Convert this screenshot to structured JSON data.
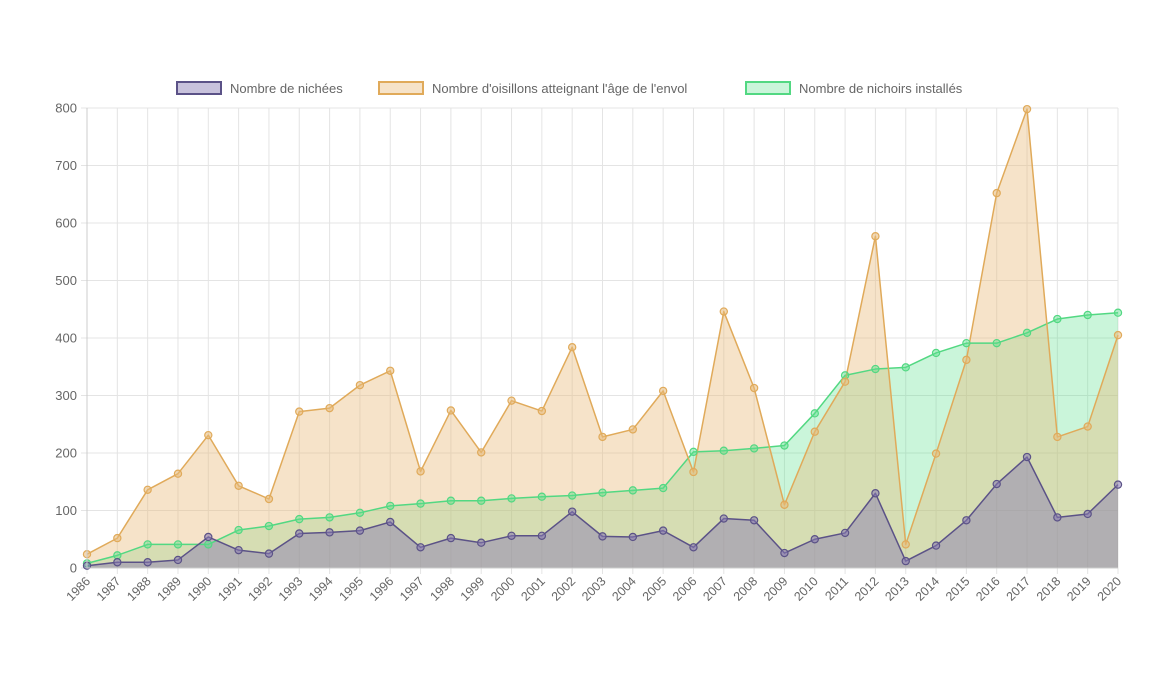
{
  "colors": {
    "nichees_stroke": "#5b5287",
    "nichees_fill": "rgba(134,120,178,0.45)",
    "nichees_point": "rgba(134,120,178,0.55)",
    "oisillons_stroke": "#e0aa5a",
    "oisillons_fill": "rgba(232,185,120,0.40)",
    "oisillons_point": "rgba(232,185,120,0.55)",
    "nichoirs_stroke": "#52d882",
    "nichoirs_fill": "rgba(90,225,140,0.32)",
    "nichoirs_point": "rgba(90,225,140,0.45)",
    "grid": "#e4e4e4",
    "tick_text": "#666666"
  },
  "chart_data": {
    "type": "area",
    "title": "",
    "xlabel": "",
    "ylabel": "",
    "ylim": [
      0,
      800
    ],
    "y_ticks": [
      0,
      100,
      200,
      300,
      400,
      500,
      600,
      700,
      800
    ],
    "grid": true,
    "legend_position": "top",
    "categories": [
      "1986",
      "1987",
      "1988",
      "1989",
      "1990",
      "1991",
      "1992",
      "1993",
      "1994",
      "1995",
      "1996",
      "1997",
      "1998",
      "1999",
      "2000",
      "2001",
      "2002",
      "2003",
      "2004",
      "2005",
      "2006",
      "2007",
      "2008",
      "2009",
      "2010",
      "2011",
      "2012",
      "2013",
      "2014",
      "2015",
      "2016",
      "2017",
      "2018",
      "2019",
      "2020"
    ],
    "series": [
      {
        "name": "Nombre de nichées",
        "key": "nichees",
        "values": [
          4,
          10,
          10,
          14,
          54,
          31,
          25,
          60,
          62,
          65,
          80,
          36,
          52,
          44,
          56,
          56,
          98,
          55,
          54,
          65,
          36,
          86,
          83,
          26,
          50,
          61,
          130,
          12,
          39,
          83,
          146,
          193,
          88,
          94,
          145
        ]
      },
      {
        "name": "Nombre d'oisillons atteignant l'âge de l'envol",
        "key": "oisillons",
        "values": [
          24,
          52,
          136,
          164,
          231,
          143,
          120,
          272,
          278,
          318,
          343,
          168,
          274,
          201,
          291,
          273,
          384,
          228,
          241,
          308,
          167,
          446,
          313,
          110,
          237,
          324,
          577,
          41,
          199,
          362,
          652,
          798,
          228,
          246,
          405
        ]
      },
      {
        "name": "Nombre de nichoirs installés",
        "key": "nichoirs",
        "values": [
          8,
          22,
          41,
          41,
          41,
          66,
          73,
          85,
          88,
          96,
          108,
          112,
          117,
          117,
          121,
          124,
          126,
          131,
          135,
          139,
          202,
          204,
          208,
          213,
          269,
          335,
          346,
          349,
          374,
          391,
          391,
          409,
          433,
          440,
          444
        ]
      }
    ]
  }
}
